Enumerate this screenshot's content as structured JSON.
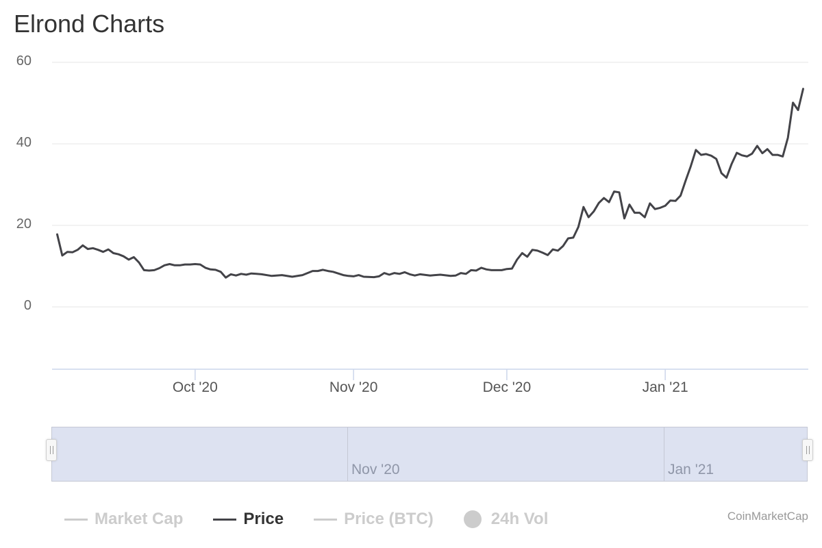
{
  "title": "Elrond Charts",
  "credit": "CoinMarketCap",
  "colors": {
    "price": "#434348",
    "grid": "#e6e6e6",
    "axis": "#ccd6eb",
    "navigator": "#dde2f1"
  },
  "legend": [
    {
      "label": "Market Cap",
      "enabled": false,
      "style": "line"
    },
    {
      "label": "Price",
      "enabled": true,
      "style": "line"
    },
    {
      "label": "Price (BTC)",
      "enabled": false,
      "style": "line"
    },
    {
      "label": "24h Vol",
      "enabled": false,
      "style": "dot"
    }
  ],
  "navigator": {
    "labels": [
      "Nov '20",
      "Jan '21"
    ]
  },
  "chart_data": {
    "type": "line",
    "xlabel": "",
    "ylabel": "",
    "x_range": [
      "2020-09-03",
      "2021-01-29"
    ],
    "ylim": [
      -15,
      60
    ],
    "yticks": [
      0,
      20,
      40,
      60
    ],
    "xticks": [
      {
        "label": "Oct '20",
        "date": "2020-10-01"
      },
      {
        "label": "Nov '20",
        "date": "2020-11-01"
      },
      {
        "label": "Dec '20",
        "date": "2020-12-01"
      },
      {
        "label": "Jan '21",
        "date": "2021-01-01"
      }
    ],
    "grid": true,
    "legend_position": "bottom",
    "series": [
      {
        "name": "Price",
        "x": [
          "2020-09-04",
          "2020-09-05",
          "2020-09-06",
          "2020-09-07",
          "2020-09-08",
          "2020-09-09",
          "2020-09-10",
          "2020-09-11",
          "2020-09-12",
          "2020-09-13",
          "2020-09-14",
          "2020-09-15",
          "2020-09-16",
          "2020-09-17",
          "2020-09-18",
          "2020-09-19",
          "2020-09-20",
          "2020-09-21",
          "2020-09-22",
          "2020-09-23",
          "2020-09-24",
          "2020-09-25",
          "2020-09-26",
          "2020-09-27",
          "2020-09-28",
          "2020-09-29",
          "2020-09-30",
          "2020-10-01",
          "2020-10-02",
          "2020-10-03",
          "2020-10-04",
          "2020-10-05",
          "2020-10-06",
          "2020-10-07",
          "2020-10-08",
          "2020-10-09",
          "2020-10-10",
          "2020-10-11",
          "2020-10-12",
          "2020-10-13",
          "2020-10-14",
          "2020-10-16",
          "2020-10-18",
          "2020-10-20",
          "2020-10-22",
          "2020-10-24",
          "2020-10-25",
          "2020-10-26",
          "2020-10-27",
          "2020-10-28",
          "2020-10-29",
          "2020-10-30",
          "2020-10-31",
          "2020-11-01",
          "2020-11-02",
          "2020-11-03",
          "2020-11-05",
          "2020-11-06",
          "2020-11-07",
          "2020-11-08",
          "2020-11-09",
          "2020-11-10",
          "2020-11-11",
          "2020-11-12",
          "2020-11-13",
          "2020-11-14",
          "2020-11-16",
          "2020-11-18",
          "2020-11-20",
          "2020-11-21",
          "2020-11-22",
          "2020-11-23",
          "2020-11-24",
          "2020-11-25",
          "2020-11-26",
          "2020-11-27",
          "2020-11-28",
          "2020-11-30",
          "2020-12-01",
          "2020-12-02",
          "2020-12-03",
          "2020-12-04",
          "2020-12-05",
          "2020-12-06",
          "2020-12-07",
          "2020-12-08",
          "2020-12-09",
          "2020-12-10",
          "2020-12-11",
          "2020-12-12",
          "2020-12-13",
          "2020-12-14",
          "2020-12-15",
          "2020-12-16",
          "2020-12-17",
          "2020-12-18",
          "2020-12-19",
          "2020-12-20",
          "2020-12-21",
          "2020-12-22",
          "2020-12-23",
          "2020-12-24",
          "2020-12-25",
          "2020-12-26",
          "2020-12-27",
          "2020-12-28",
          "2020-12-29",
          "2020-12-30",
          "2020-12-31",
          "2021-01-01",
          "2021-01-02",
          "2021-01-03",
          "2021-01-04",
          "2021-01-05",
          "2021-01-06",
          "2021-01-07",
          "2021-01-08",
          "2021-01-09",
          "2021-01-10",
          "2021-01-11",
          "2021-01-12",
          "2021-01-13",
          "2021-01-14",
          "2021-01-15",
          "2021-01-16",
          "2021-01-17",
          "2021-01-18",
          "2021-01-19",
          "2021-01-20",
          "2021-01-21",
          "2021-01-22",
          "2021-01-23",
          "2021-01-24",
          "2021-01-25",
          "2021-01-26",
          "2021-01-27",
          "2021-01-28"
        ],
        "values": [
          17.8,
          12.6,
          13.5,
          13.4,
          14.0,
          15.1,
          14.2,
          14.4,
          14.0,
          13.5,
          14.1,
          13.2,
          12.9,
          12.4,
          11.6,
          12.2,
          10.9,
          9.0,
          8.9,
          9.0,
          9.5,
          10.2,
          10.5,
          10.2,
          10.2,
          10.4,
          10.4,
          10.5,
          10.4,
          9.6,
          9.2,
          9.1,
          8.6,
          7.2,
          8.0,
          7.7,
          8.1,
          7.9,
          8.2,
          8.1,
          8.0,
          7.6,
          7.8,
          7.4,
          7.8,
          8.8,
          8.8,
          9.1,
          8.8,
          8.6,
          8.2,
          7.8,
          7.6,
          7.5,
          7.8,
          7.4,
          7.3,
          7.5,
          8.3,
          7.9,
          8.3,
          8.1,
          8.5,
          8.0,
          7.7,
          8.0,
          7.7,
          7.9,
          7.6,
          7.7,
          8.3,
          8.1,
          9.0,
          8.9,
          9.6,
          9.2,
          9.0,
          9.0,
          9.3,
          9.4,
          11.6,
          13.2,
          12.3,
          14.0,
          13.8,
          13.3,
          12.7,
          14.1,
          13.8,
          14.9,
          16.8,
          17.0,
          19.6,
          24.5,
          22.0,
          23.4,
          25.5,
          26.7,
          25.7,
          28.3,
          28.1,
          21.7,
          25.1,
          23.1,
          23.1,
          22.0,
          25.4,
          24.0,
          24.3,
          24.8,
          26.1,
          26.0,
          27.3,
          31.0,
          34.5,
          38.5,
          37.3,
          37.5,
          37.1,
          36.3,
          32.8,
          31.7,
          35.1,
          37.8,
          37.2,
          36.9,
          37.6,
          39.5,
          37.7,
          38.7,
          37.3,
          37.3,
          36.9,
          41.5,
          50.1,
          48.3,
          53.5
        ]
      }
    ]
  }
}
